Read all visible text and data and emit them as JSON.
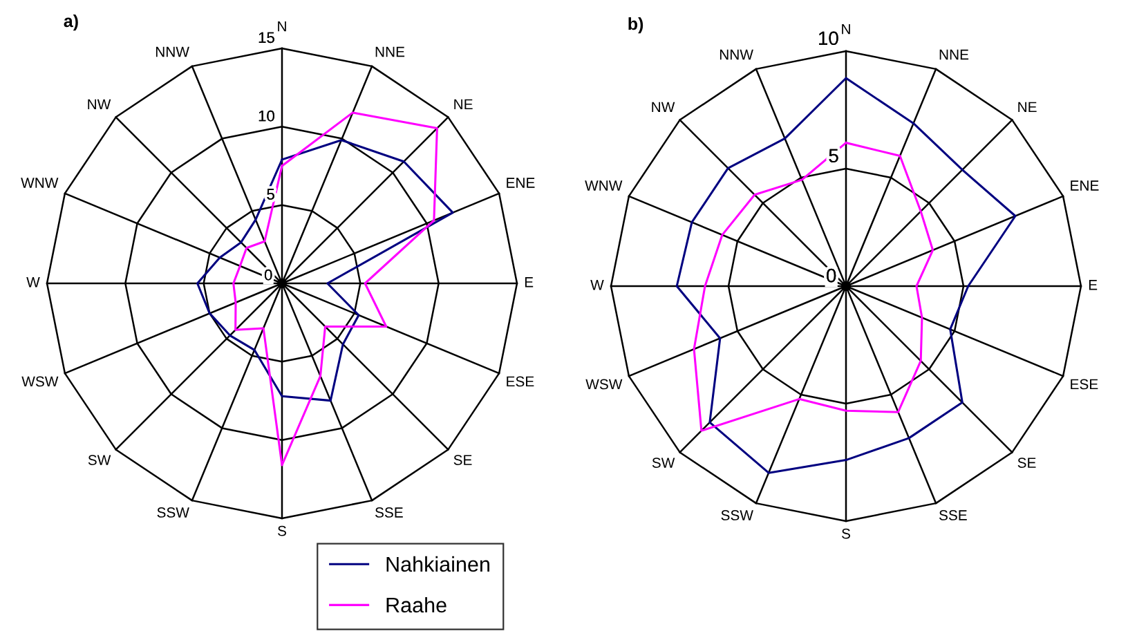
{
  "chart_data": [
    {
      "type": "radar",
      "title": "a)",
      "categories": [
        "N",
        "NNE",
        "NE",
        "ENE",
        "E",
        "ESE",
        "SE",
        "SSE",
        "S",
        "SSW",
        "SW",
        "WSW",
        "W",
        "WNW",
        "NW",
        "NNW"
      ],
      "ylim": [
        0,
        15
      ],
      "yticks": [
        0,
        5,
        10,
        15
      ],
      "legend": "bottom",
      "series": [
        {
          "name": "Nahkiainen",
          "color": "#000080",
          "values": [
            7.9,
            9.9,
            11.0,
            11.8,
            2.9,
            5.3,
            5.5,
            8.1,
            7.2,
            4.6,
            4.7,
            5.0,
            5.4,
            4.3,
            3.7,
            4.4
          ]
        },
        {
          "name": "Raahe",
          "color": "#ff00ff",
          "values": [
            7.5,
            11.8,
            14.0,
            10.5,
            5.3,
            7.2,
            3.9,
            6.4,
            11.6,
            3.1,
            4.2,
            3.2,
            3.1,
            2.9,
            3.2,
            2.9
          ]
        }
      ]
    },
    {
      "type": "radar",
      "title": "b)",
      "categories": [
        "N",
        "NNE",
        "NE",
        "ENE",
        "E",
        "ESE",
        "SE",
        "SSE",
        "S",
        "SSW",
        "SW",
        "WSW",
        "W",
        "WNW",
        "NW",
        "NNW"
      ],
      "ylim": [
        0,
        10
      ],
      "yticks": [
        0,
        5,
        10
      ],
      "series": [
        {
          "name": "Nahkiainen",
          "color": "#000080",
          "values": [
            8.85,
            7.5,
            7.0,
            7.8,
            5.2,
            4.8,
            7.0,
            7.0,
            7.4,
            8.6,
            8.2,
            5.8,
            7.2,
            7.1,
            7.1,
            6.8
          ]
        },
        {
          "name": "Raahe",
          "color": "#ff00ff",
          "values": [
            6.1,
            6.0,
            4.5,
            4.0,
            3.0,
            3.5,
            4.5,
            5.8,
            5.3,
            5.2,
            8.7,
            7.0,
            6.0,
            5.7,
            5.5,
            4.9
          ]
        }
      ]
    }
  ]
}
